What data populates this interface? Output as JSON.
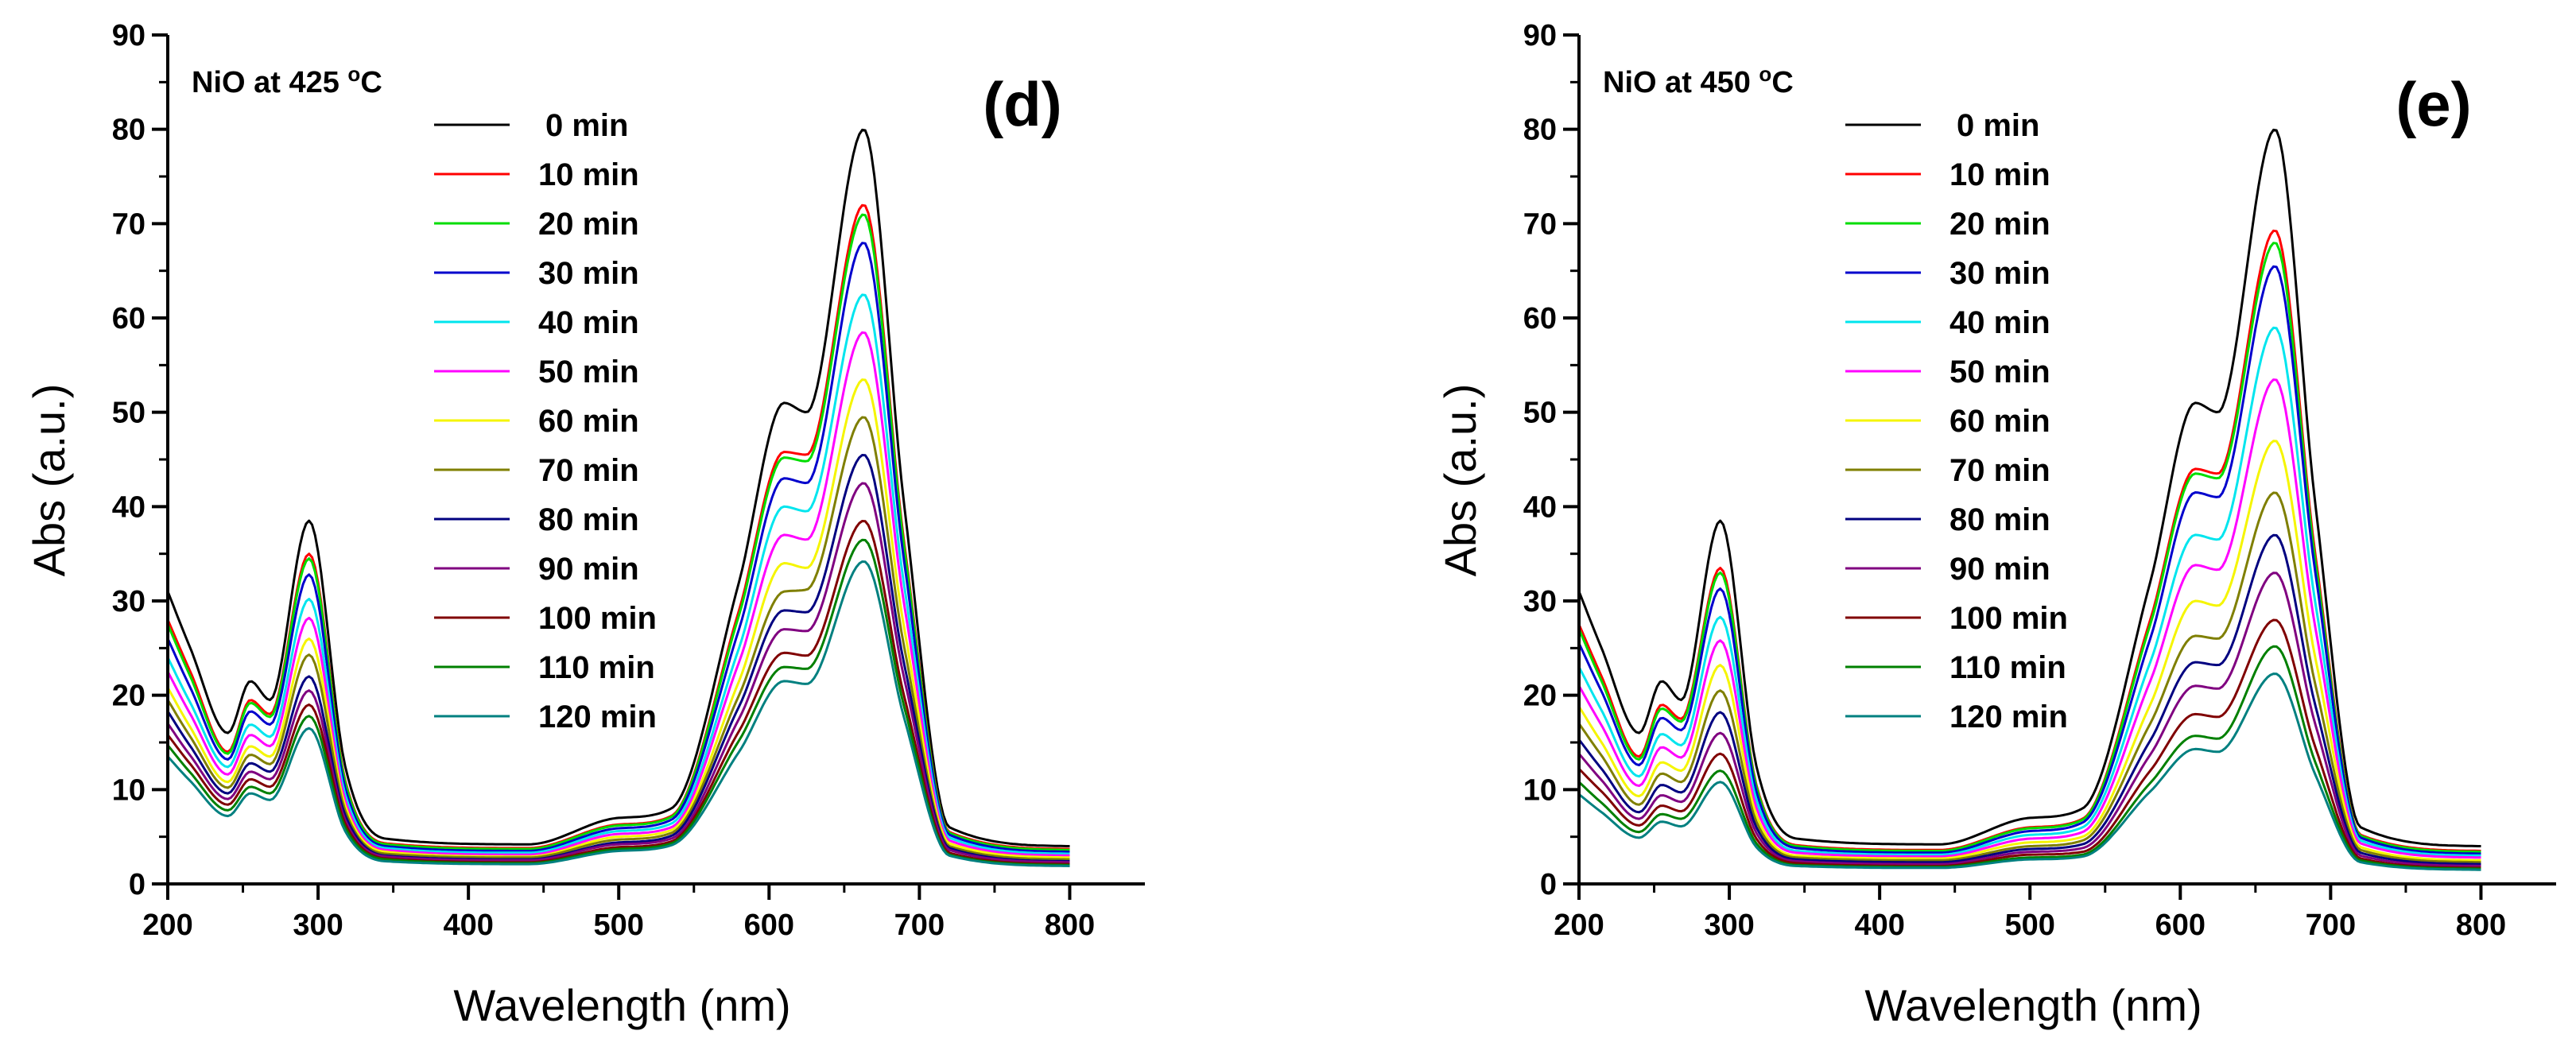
{
  "figure": {
    "description_panels": [
      "d",
      "e"
    ]
  },
  "chart_data": [
    {
      "type": "line",
      "panel_label": "(d)",
      "title": "NiO at 425 °C",
      "title_main": "NiO at 425 ",
      "title_degree": "o",
      "title_unit": "C",
      "xlabel": "Wavelength (nm)",
      "ylabel": "Abs (a.u.)",
      "xlim": [
        200,
        850
      ],
      "ylim": [
        0,
        90
      ],
      "xticks": [
        200,
        300,
        400,
        500,
        600,
        700,
        800
      ],
      "yticks": [
        0,
        10,
        20,
        30,
        40,
        50,
        60,
        70,
        80,
        90
      ],
      "legend_position": "upper-middle",
      "anchor_x": [
        200,
        215,
        240,
        255,
        268,
        294,
        318,
        345,
        440,
        500,
        535,
        580,
        610,
        625,
        663,
        690,
        720,
        800
      ],
      "series": [
        {
          "name": "0 min",
          "color": "#000000",
          "values": [
            31,
            25,
            16,
            21.5,
            19.5,
            38.5,
            12.5,
            4.8,
            4.2,
            7,
            8,
            32,
            51,
            50,
            80,
            40,
            6,
            4
          ]
        },
        {
          "name": "10 min",
          "color": "#ff0000",
          "values": [
            28,
            22.5,
            14,
            19.5,
            18,
            35,
            11,
            4.3,
            3.8,
            6.3,
            7.2,
            29,
            45.8,
            45.5,
            72,
            36,
            5.5,
            3.7
          ]
        },
        {
          "name": "20 min",
          "color": "#00dd00",
          "values": [
            27.5,
            22,
            13.8,
            19.2,
            17.7,
            34.5,
            10.8,
            4.2,
            3.7,
            6.2,
            7.1,
            28.5,
            45.2,
            44.8,
            71,
            35.5,
            5.4,
            3.6
          ]
        },
        {
          "name": "30 min",
          "color": "#0000cc",
          "values": [
            26,
            20.8,
            13.2,
            18.3,
            16.9,
            32.8,
            10.2,
            4,
            3.5,
            5.9,
            6.8,
            27,
            43,
            42.5,
            68,
            34,
            5.2,
            3.4
          ]
        },
        {
          "name": "40 min",
          "color": "#00e5ee",
          "values": [
            24,
            19.2,
            12.4,
            16.9,
            15.6,
            30.2,
            9.5,
            3.8,
            3.3,
            5.6,
            6.4,
            25,
            40,
            39.5,
            62.5,
            31.5,
            4.9,
            3.2
          ]
        },
        {
          "name": "50 min",
          "color": "#ff00ff",
          "values": [
            22.5,
            18,
            11.6,
            15.8,
            14.6,
            28.2,
            8.9,
            3.6,
            3.1,
            5.3,
            6,
            23.5,
            37,
            36.5,
            58.5,
            29.5,
            4.6,
            3
          ]
        },
        {
          "name": "60 min",
          "color": "#f5f500",
          "values": [
            20.8,
            16.6,
            10.8,
            14.6,
            13.5,
            26,
            8.3,
            3.4,
            2.9,
            5,
            5.7,
            21.5,
            34,
            33.5,
            53.5,
            27,
            4.3,
            2.8
          ]
        },
        {
          "name": "70 min",
          "color": "#7f7f00",
          "values": [
            19.5,
            15.6,
            10.2,
            13.7,
            12.7,
            24.3,
            7.8,
            3.2,
            2.8,
            4.7,
            5.4,
            20,
            31,
            31.2,
            49.5,
            25,
            4,
            2.6
          ]
        },
        {
          "name": "80 min",
          "color": "#000080",
          "values": [
            18.3,
            14.6,
            9.6,
            12.8,
            11.9,
            22,
            7.3,
            3,
            2.6,
            4.4,
            5.1,
            18.8,
            29,
            28.8,
            45.5,
            23.2,
            3.8,
            2.4
          ]
        },
        {
          "name": "90 min",
          "color": "#800080",
          "values": [
            17,
            13.6,
            9,
            11.9,
            11.1,
            20.5,
            6.8,
            2.9,
            2.5,
            4.2,
            4.8,
            17.5,
            27,
            26.8,
            42.5,
            21.7,
            3.6,
            2.3
          ]
        },
        {
          "name": "100 min",
          "color": "#800000",
          "values": [
            15.8,
            12.7,
            8.4,
            11.1,
            10.3,
            19,
            6.4,
            2.7,
            2.3,
            3.9,
            4.5,
            16.2,
            24.5,
            24.2,
            38.5,
            19.8,
            3.3,
            2.1
          ]
        },
        {
          "name": "110 min",
          "color": "#008000",
          "values": [
            14.7,
            11.8,
            7.8,
            10.3,
            9.6,
            17.8,
            6,
            2.6,
            2.2,
            3.7,
            4.3,
            15.2,
            23,
            22.8,
            36.5,
            18.7,
            3.1,
            2
          ]
        },
        {
          "name": "120 min",
          "color": "#008080",
          "values": [
            13.5,
            10.9,
            7.2,
            9.6,
            8.9,
            16.5,
            5.6,
            2.4,
            2.1,
            3.5,
            4.1,
            14,
            21.5,
            21.2,
            34.2,
            17.5,
            3,
            1.9
          ]
        }
      ]
    },
    {
      "type": "line",
      "panel_label": "(e)",
      "title": "NiO at 450 °C",
      "title_main": "NiO at 450 ",
      "title_degree": "o",
      "title_unit": "C",
      "xlabel": "Wavelength (nm)",
      "ylabel": "Abs (a.u.)",
      "xlim": [
        200,
        850
      ],
      "ylim": [
        0,
        90
      ],
      "xticks": [
        200,
        300,
        400,
        500,
        600,
        700,
        800
      ],
      "yticks": [
        0,
        10,
        20,
        30,
        40,
        50,
        60,
        70,
        80,
        90
      ],
      "legend_position": "upper-middle",
      "anchor_x": [
        200,
        215,
        240,
        255,
        268,
        294,
        318,
        345,
        440,
        500,
        535,
        580,
        610,
        625,
        663,
        690,
        720,
        800
      ],
      "series": [
        {
          "name": "0 min",
          "color": "#000000",
          "values": [
            31,
            25,
            16,
            21.5,
            19.5,
            38.5,
            12.5,
            4.8,
            4.2,
            7,
            8,
            32,
            51,
            50,
            80,
            40,
            6,
            4
          ]
        },
        {
          "name": "10 min",
          "color": "#ff0000",
          "values": [
            27.5,
            22,
            13.5,
            19,
            17.5,
            33.5,
            10.5,
            4.1,
            3.6,
            6,
            6.9,
            28,
            44,
            43.5,
            69.3,
            34.7,
            5.2,
            3.5
          ]
        },
        {
          "name": "20 min",
          "color": "#00dd00",
          "values": [
            27,
            21.5,
            13.2,
            18.6,
            17.2,
            33,
            10.3,
            4,
            3.5,
            5.9,
            6.8,
            27.5,
            43.5,
            43,
            68,
            34,
            5.1,
            3.4
          ]
        },
        {
          "name": "30 min",
          "color": "#0000cc",
          "values": [
            25.5,
            20.4,
            12.6,
            17.6,
            16.3,
            31.3,
            9.8,
            3.8,
            3.3,
            5.6,
            6.5,
            26,
            41.5,
            41,
            65.5,
            32.8,
            4.9,
            3.2
          ]
        },
        {
          "name": "40 min",
          "color": "#00e5ee",
          "values": [
            23,
            18.4,
            11.4,
            15.9,
            14.7,
            28.3,
            8.9,
            3.5,
            3.1,
            5.2,
            6,
            23.5,
            37,
            36.5,
            59,
            29.6,
            4.6,
            3
          ]
        },
        {
          "name": "50 min",
          "color": "#ff00ff",
          "values": [
            21,
            16.8,
            10.4,
            14.5,
            13.4,
            25.8,
            8.1,
            3.3,
            2.9,
            4.8,
            5.5,
            21.5,
            33.8,
            33.3,
            53.5,
            27,
            4.3,
            2.8
          ]
        },
        {
          "name": "60 min",
          "color": "#f5f500",
          "values": [
            18.8,
            15,
            9.3,
            12.9,
            12,
            23.2,
            7.3,
            3,
            2.7,
            4.4,
            5,
            19,
            30,
            29.5,
            47,
            23.8,
            3.9,
            2.5
          ]
        },
        {
          "name": "70 min",
          "color": "#7f7f00",
          "values": [
            17,
            13.6,
            8.4,
            11.7,
            10.8,
            20.5,
            6.6,
            2.8,
            2.5,
            4,
            4.6,
            17,
            26.3,
            26,
            41.5,
            21,
            3.6,
            2.3
          ]
        },
        {
          "name": "80 min",
          "color": "#000080",
          "values": [
            15.3,
            12.2,
            7.6,
            10.5,
            9.7,
            18.2,
            6,
            2.6,
            2.3,
            3.7,
            4.2,
            15.2,
            23.5,
            23.2,
            37,
            18.8,
            3.3,
            2.1
          ]
        },
        {
          "name": "90 min",
          "color": "#800080",
          "values": [
            13.8,
            11,
            6.9,
            9.4,
            8.7,
            16,
            5.4,
            2.4,
            2.1,
            3.4,
            3.8,
            13.7,
            21,
            20.7,
            33,
            16.8,
            3,
            1.9
          ]
        },
        {
          "name": "100 min",
          "color": "#800000",
          "values": [
            12.2,
            9.8,
            6.2,
            8.3,
            7.7,
            13.8,
            4.8,
            2.2,
            1.9,
            3.1,
            3.4,
            12,
            18,
            17.7,
            28,
            14.4,
            2.7,
            1.7
          ]
        },
        {
          "name": "110 min",
          "color": "#008000",
          "values": [
            10.8,
            8.6,
            5.5,
            7.4,
            6.9,
            12,
            4.3,
            2,
            1.8,
            2.8,
            3.1,
            10.7,
            15.7,
            15.4,
            25.2,
            12.8,
            2.5,
            1.6
          ]
        },
        {
          "name": "120 min",
          "color": "#008080",
          "values": [
            9.5,
            7.6,
            4.9,
            6.6,
            6.1,
            10.8,
            3.9,
            1.9,
            1.7,
            2.6,
            2.9,
            9.8,
            14.3,
            14,
            22.3,
            11.5,
            2.3,
            1.5
          ]
        }
      ]
    }
  ]
}
